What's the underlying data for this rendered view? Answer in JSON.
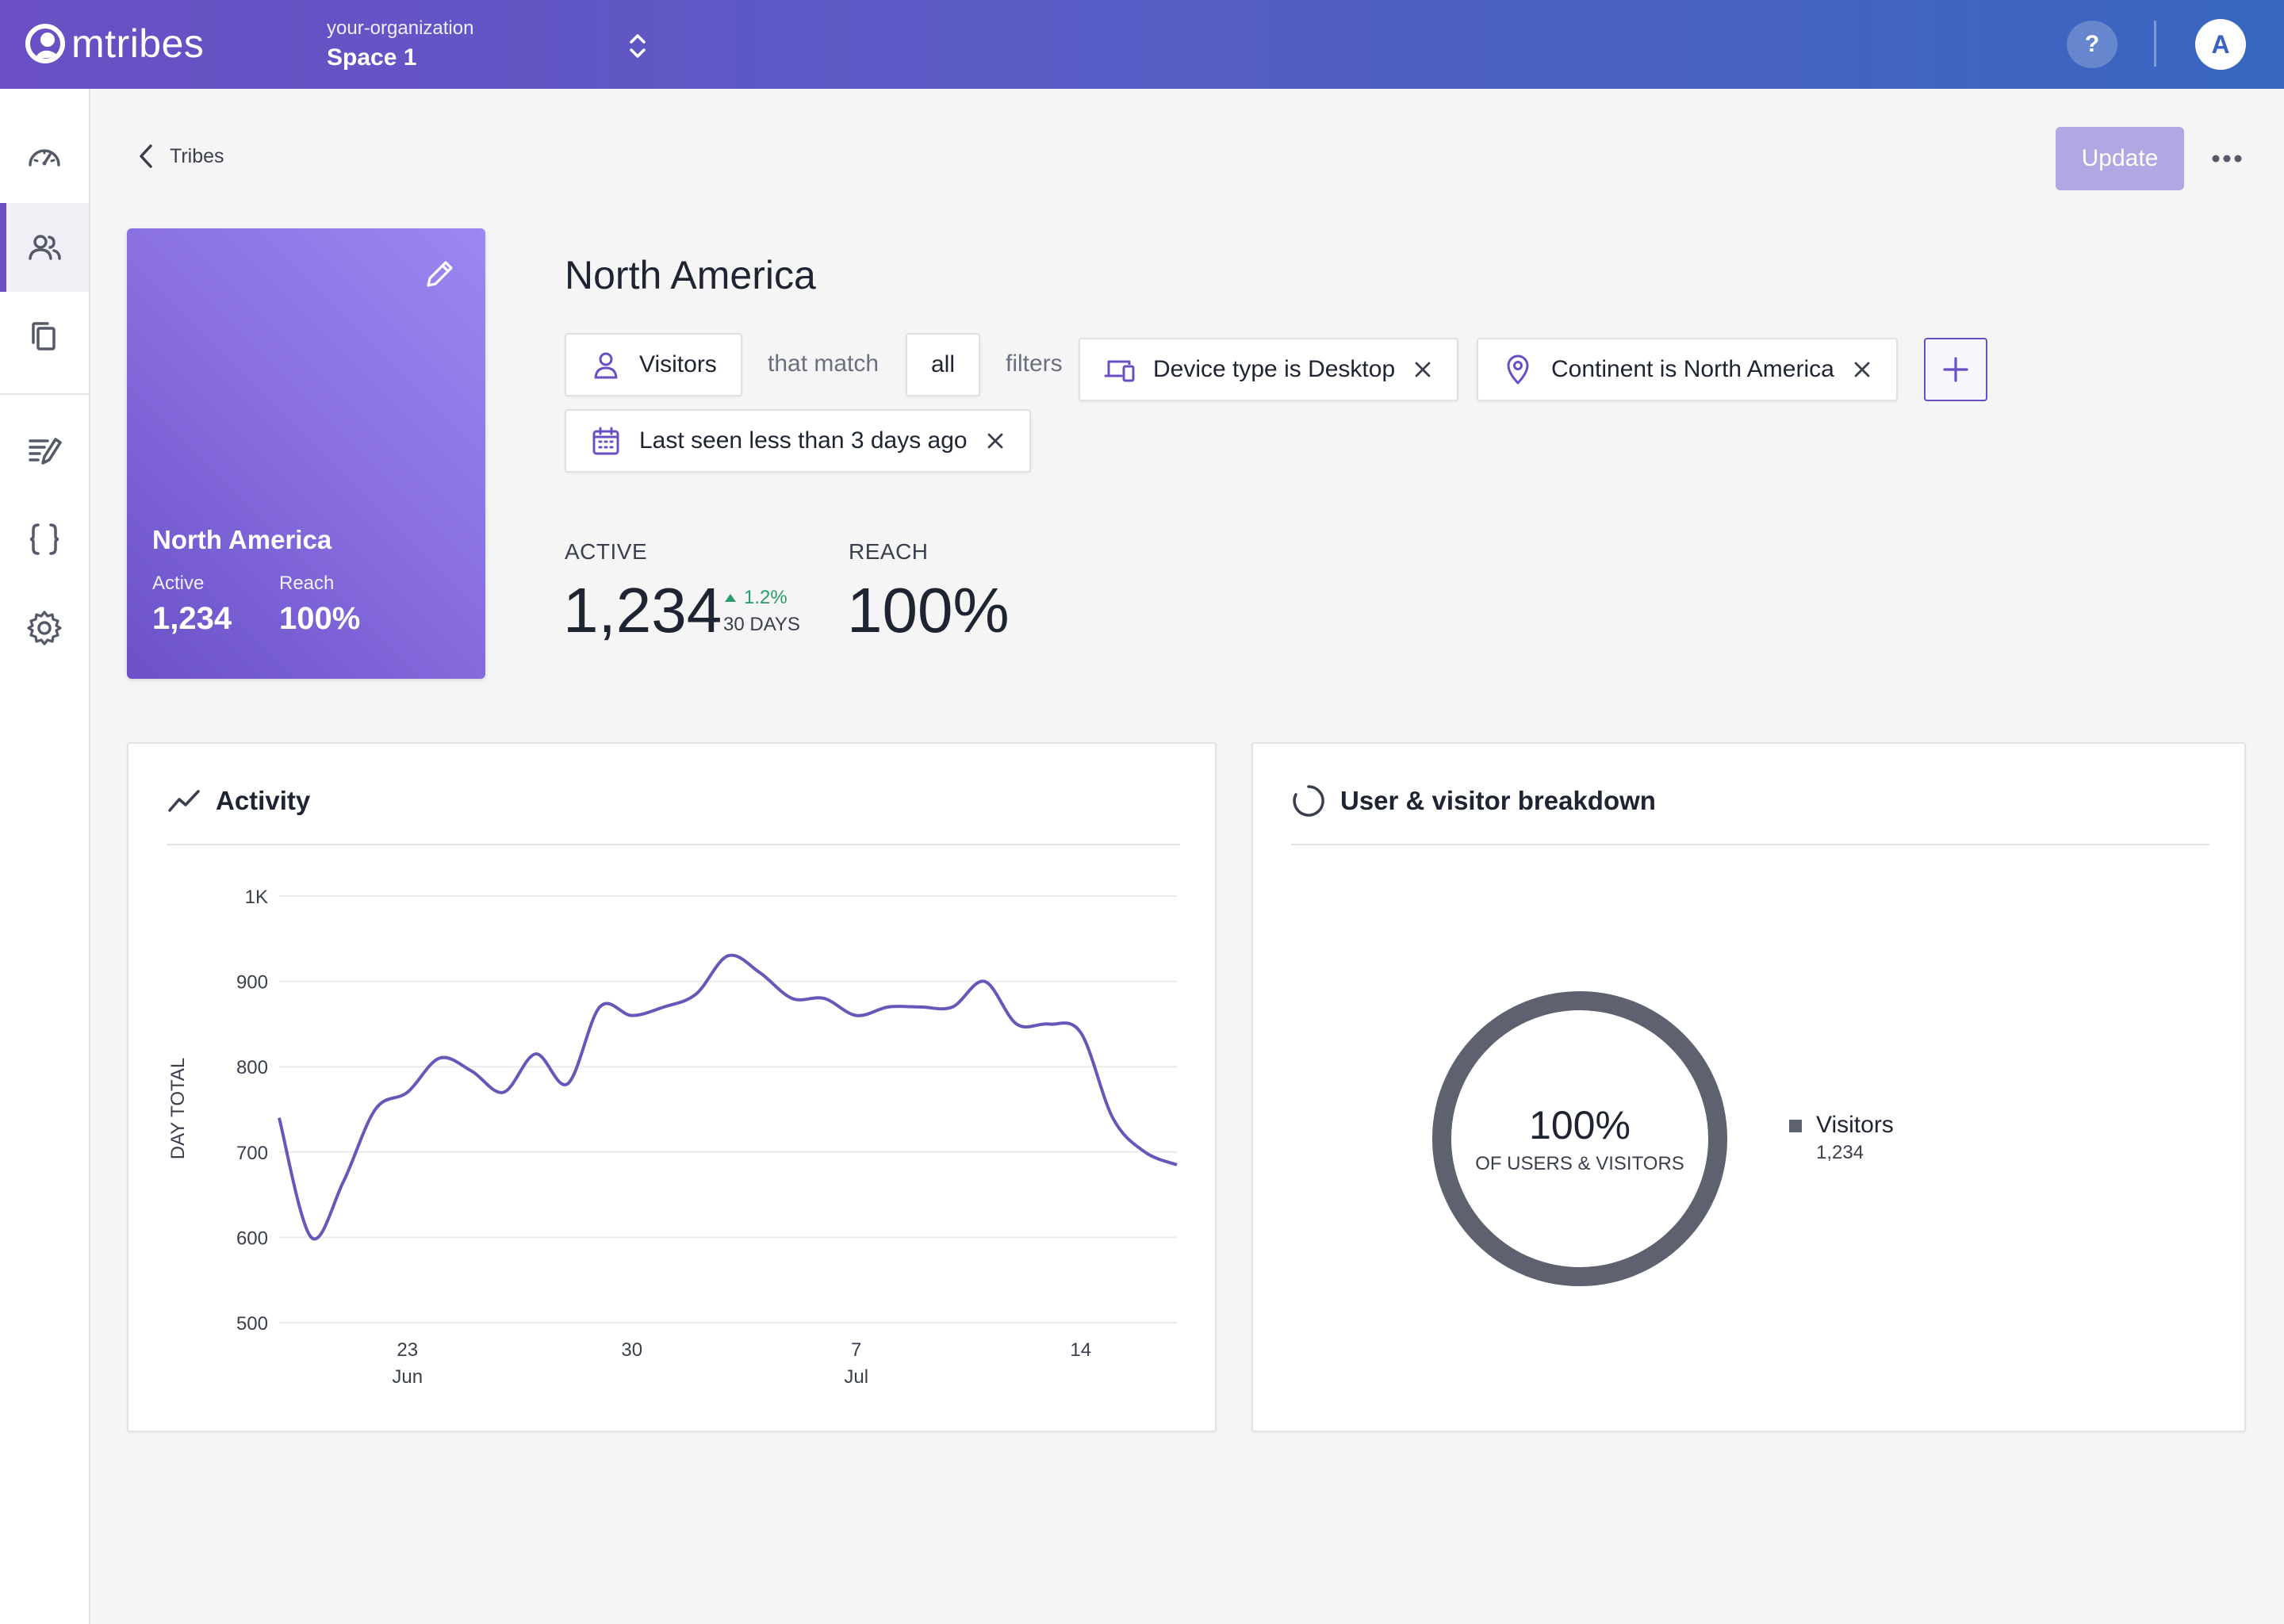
{
  "app": {
    "logo_text": "mtribes",
    "org_name": "your-organization",
    "space_name": "Space 1",
    "help_label": "?",
    "avatar_initial": "A"
  },
  "sidebar": {
    "items": [
      {
        "icon": "speedometer-icon",
        "active": false
      },
      {
        "icon": "users-icon",
        "active": true
      },
      {
        "icon": "copy-icon",
        "active": false
      },
      {
        "icon": "edit-list-icon",
        "active": false
      },
      {
        "icon": "code-braces-icon",
        "active": false
      },
      {
        "icon": "gear-icon",
        "active": false
      }
    ]
  },
  "header": {
    "back_label": "Tribes",
    "update_label": "Update"
  },
  "tribe_card": {
    "title": "North America",
    "active_label": "Active",
    "active_value": "1,234",
    "reach_label": "Reach",
    "reach_value": "100%"
  },
  "tribe": {
    "title": "North America",
    "audience": "Visitors",
    "that_match": "that match",
    "match_mode": "all",
    "filters_word": "filters",
    "filters": [
      {
        "label": "Device type is Desktop",
        "icon": "devices-icon"
      },
      {
        "label": "Continent is North America",
        "icon": "location-pin-icon"
      },
      {
        "label": "Last seen less than 3 days ago",
        "icon": "calendar-icon"
      }
    ]
  },
  "stats": {
    "active_label": "ACTIVE",
    "active_value": "1,234",
    "delta": "1.2%",
    "delta_period": "30 DAYS",
    "reach_label": "REACH",
    "reach_value": "100%"
  },
  "activity": {
    "title": "Activity"
  },
  "breakdown": {
    "title": "User & visitor breakdown",
    "center_value": "100%",
    "center_label": "OF USERS & VISITORS",
    "legend_name": "Visitors",
    "legend_value": "1,234"
  },
  "colors": {
    "accent": "#6a4fc4",
    "line": "#6a56b8",
    "donut": "#5d6170",
    "positive": "#2a9a6a"
  },
  "chart_data": [
    {
      "type": "line",
      "title": "Activity",
      "ylabel": "DAY TOTAL",
      "xlabel": "",
      "ylim": [
        500,
        1000
      ],
      "yticks": [
        500,
        600,
        700,
        800,
        900,
        1000
      ],
      "ytick_labels": [
        "500",
        "600",
        "700",
        "800",
        "900",
        "1K"
      ],
      "xticks": [
        {
          "x": "2021-06-23",
          "label": "23",
          "sublabel": "Jun"
        },
        {
          "x": "2021-06-30",
          "label": "30",
          "sublabel": ""
        },
        {
          "x": "2021-07-07",
          "label": "7",
          "sublabel": "Jul"
        },
        {
          "x": "2021-07-14",
          "label": "14",
          "sublabel": ""
        }
      ],
      "x": [
        "2021-06-19",
        "2021-06-20",
        "2021-06-21",
        "2021-06-22",
        "2021-06-23",
        "2021-06-24",
        "2021-06-25",
        "2021-06-26",
        "2021-06-27",
        "2021-06-28",
        "2021-06-29",
        "2021-06-30",
        "2021-07-01",
        "2021-07-02",
        "2021-07-03",
        "2021-07-04",
        "2021-07-05",
        "2021-07-06",
        "2021-07-07",
        "2021-07-08",
        "2021-07-09",
        "2021-07-10",
        "2021-07-11",
        "2021-07-12",
        "2021-07-13",
        "2021-07-14",
        "2021-07-15",
        "2021-07-16",
        "2021-07-17"
      ],
      "series": [
        {
          "values": [
            740,
            600,
            665,
            750,
            770,
            810,
            795,
            770,
            815,
            780,
            870,
            860,
            870,
            885,
            930,
            910,
            880,
            880,
            860,
            870,
            870,
            870,
            900,
            850,
            850,
            840,
            740,
            700,
            685
          ]
        }
      ],
      "grid": true
    },
    {
      "type": "pie",
      "title": "User & visitor breakdown",
      "categories": [
        "Visitors"
      ],
      "values": [
        1234
      ],
      "legend": "right"
    }
  ]
}
